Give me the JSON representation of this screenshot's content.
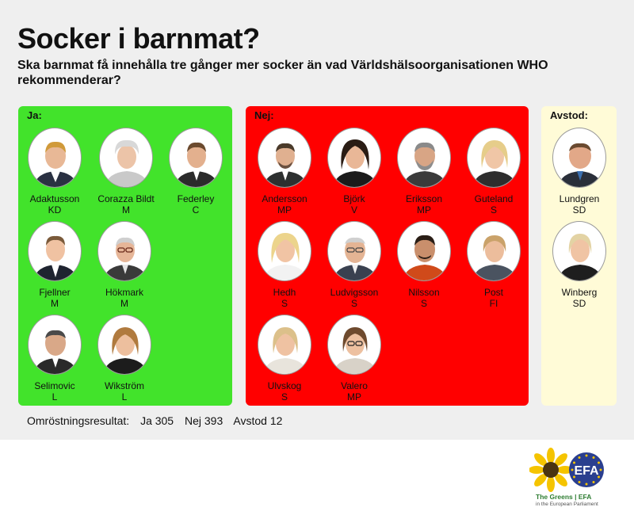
{
  "title": "Socker i barnmat?",
  "subtitle": "Ska barnmat få innehålla tre gånger mer socker än vad Världshälsoorganisationen WHO rekommenderar?",
  "groups": {
    "ja": {
      "label": "Ja:",
      "color": "#42e32b",
      "members": [
        {
          "name": "Adaktusson",
          "party": "KD"
        },
        {
          "name": "Corazza Bildt",
          "party": "M"
        },
        {
          "name": "Federley",
          "party": "C"
        },
        {
          "name": "Fjellner",
          "party": "M"
        },
        {
          "name": "Hökmark",
          "party": "M"
        },
        {
          "name": "Selimovic",
          "party": "L"
        },
        {
          "name": "Wikström",
          "party": "L"
        }
      ]
    },
    "nej": {
      "label": "Nej:",
      "color": "#ff0000",
      "members": [
        {
          "name": "Andersson",
          "party": "MP"
        },
        {
          "name": "Björk",
          "party": "V"
        },
        {
          "name": "Eriksson",
          "party": "MP"
        },
        {
          "name": "Guteland",
          "party": "S"
        },
        {
          "name": "Hedh",
          "party": "S"
        },
        {
          "name": "Ludvigsson",
          "party": "S"
        },
        {
          "name": "Nilsson",
          "party": "S"
        },
        {
          "name": "Post",
          "party": "FI"
        },
        {
          "name": "Ulvskog",
          "party": "S"
        },
        {
          "name": "Valero",
          "party": "MP"
        }
      ]
    },
    "avstod": {
      "label": "Avstod:",
      "color": "#fffbd7",
      "members": [
        {
          "name": "Lundgren",
          "party": "SD"
        },
        {
          "name": "Winberg",
          "party": "SD"
        }
      ]
    }
  },
  "results": {
    "label": "Omröstningsresultat:",
    "ja": "Ja 305",
    "nej": "Nej 393",
    "avstod": "Avstod 12"
  },
  "logo": {
    "text": "The Greens | EFA",
    "subtext": "in the European Parliament",
    "emblem": "EFA"
  }
}
